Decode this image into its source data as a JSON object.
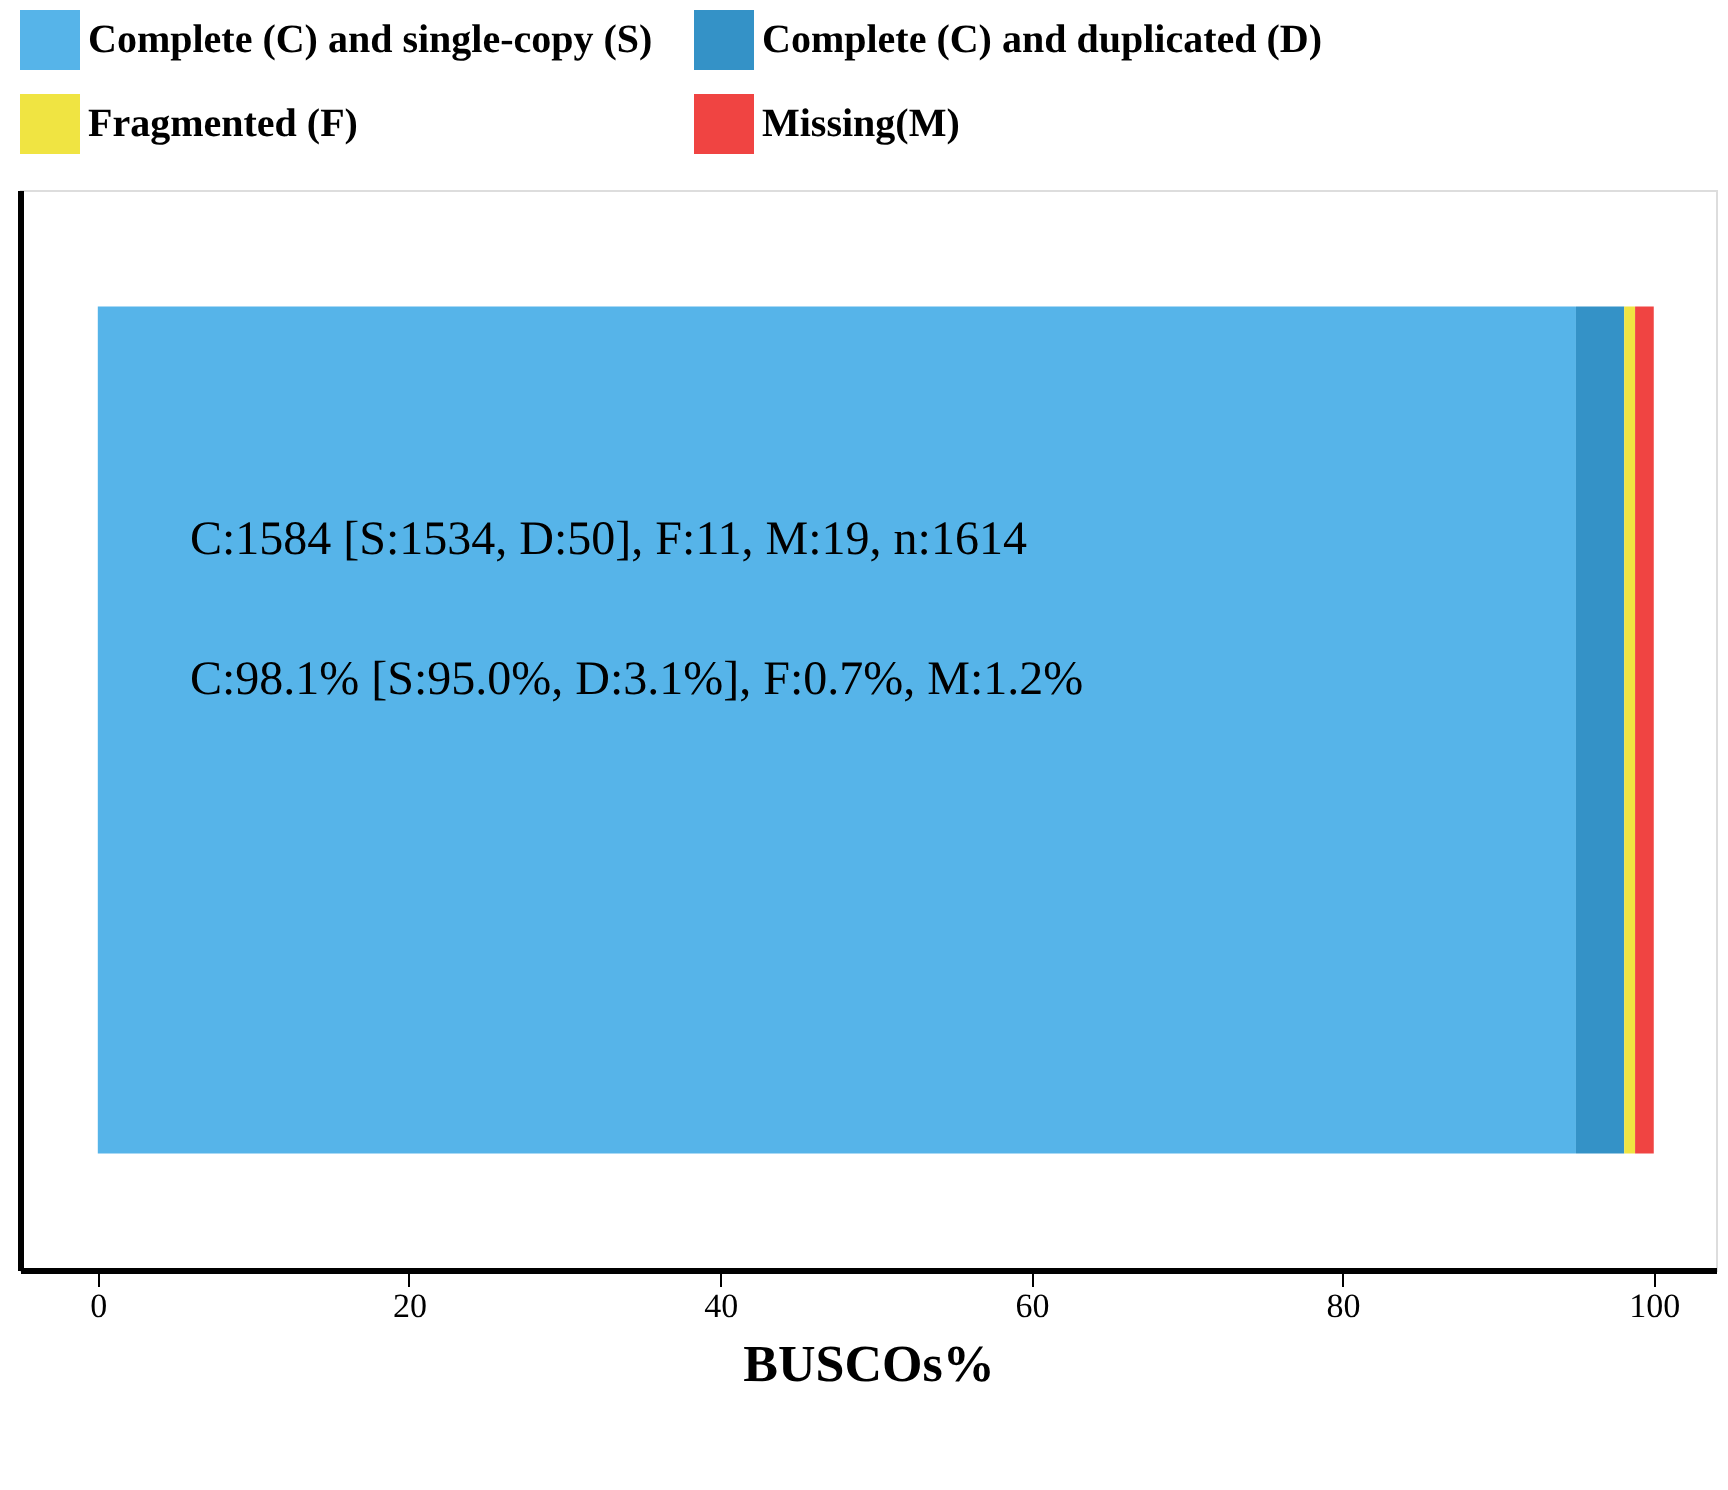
{
  "chart_data": {
    "type": "bar",
    "orientation": "horizontal",
    "stacked": true,
    "categories": [
      null
    ],
    "series": [
      {
        "name": "Complete (C) and single-copy (S)",
        "color": "#56b4e9",
        "values": [
          95.0
        ]
      },
      {
        "name": "Complete (C) and duplicated (D)",
        "color": "#3492c7",
        "values": [
          3.1
        ]
      },
      {
        "name": "Fragmented (F)",
        "color": "#f0e442",
        "values": [
          0.7
        ]
      },
      {
        "name": "Missing(M)",
        "color": "#f04442",
        "values": [
          1.2
        ]
      }
    ],
    "xlabel": "BUSCOs%",
    "xlim": [
      -5,
      104
    ],
    "xticks": [
      0,
      20,
      40,
      60,
      80,
      100
    ],
    "tick_labels": "x",
    "grid": false,
    "legend": "top",
    "annotations": [
      "C:1584 [S:1534, D:50], F:11, M:19, n:1614",
      "C:98.1% [S:95.0%, D:3.1%], F:0.7%, M:1.2%"
    ]
  }
}
